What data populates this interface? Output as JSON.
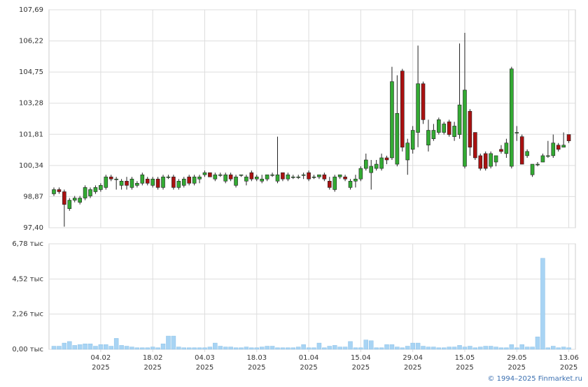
{
  "chart_data": [
    {
      "type": "candlestick",
      "categories": [
        null,
        null,
        null,
        null,
        null,
        null,
        null,
        null,
        null,
        "04.02",
        null,
        null,
        null,
        null,
        null,
        null,
        null,
        null,
        null,
        "18.02",
        null,
        null,
        null,
        null,
        null,
        null,
        null,
        null,
        null,
        "04.03",
        null,
        null,
        null,
        null,
        null,
        null,
        null,
        null,
        null,
        "18.03",
        null,
        null,
        null,
        null,
        null,
        null,
        null,
        null,
        null,
        "01.04",
        null,
        null,
        null,
        null,
        null,
        null,
        null,
        null,
        null,
        "15.04",
        null,
        null,
        null,
        null,
        null,
        null,
        null,
        null,
        null,
        "29.04",
        null,
        null,
        null,
        null,
        null,
        null,
        null,
        null,
        null,
        "15.05",
        null,
        null,
        null,
        null,
        null,
        null,
        null,
        null,
        null,
        "29.05",
        null,
        null,
        null,
        null,
        null,
        null,
        null,
        null,
        null,
        "13.06"
      ],
      "category_years": [
        null,
        null,
        null,
        null,
        null,
        null,
        null,
        null,
        null,
        "2025",
        null,
        null,
        null,
        null,
        null,
        null,
        null,
        null,
        null,
        "2025",
        null,
        null,
        null,
        null,
        null,
        null,
        null,
        null,
        null,
        "2025",
        null,
        null,
        null,
        null,
        null,
        null,
        null,
        null,
        null,
        "2025",
        null,
        null,
        null,
        null,
        null,
        null,
        null,
        null,
        null,
        "2025",
        null,
        null,
        null,
        null,
        null,
        null,
        null,
        null,
        null,
        "2025",
        null,
        null,
        null,
        null,
        null,
        null,
        null,
        null,
        null,
        "2025",
        null,
        null,
        null,
        null,
        null,
        null,
        null,
        null,
        null,
        "2025",
        null,
        null,
        null,
        null,
        null,
        null,
        null,
        null,
        null,
        "2025",
        null,
        null,
        null,
        null,
        null,
        null,
        null,
        null,
        null,
        "2025"
      ],
      "open": [
        99.0,
        99.2,
        99.1,
        98.3,
        98.7,
        98.6,
        98.8,
        98.9,
        99.1,
        99.2,
        99.3,
        99.8,
        99.7,
        99.4,
        99.6,
        99.3,
        99.4,
        99.5,
        99.7,
        99.4,
        99.7,
        99.3,
        99.8,
        99.8,
        99.3,
        99.4,
        99.8,
        99.5,
        99.7,
        99.9,
        100.0,
        99.7,
        99.9,
        99.6,
        99.9,
        99.4,
        99.9,
        99.6,
        100.0,
        99.7,
        99.6,
        99.7,
        99.9,
        99.6,
        100.0,
        99.7,
        99.8,
        99.8,
        99.9,
        100.0,
        99.8,
        99.8,
        99.9,
        99.6,
        99.2,
        99.8,
        99.8,
        99.3,
        99.6,
        99.7,
        100.2,
        100.0,
        100.2,
        100.2,
        100.7,
        100.7,
        100.4,
        104.8,
        100.6,
        101.1,
        101.9,
        104.2,
        101.3,
        101.6,
        101.9,
        101.9,
        102.4,
        101.7,
        101.8,
        100.3,
        102.9,
        101.9,
        100.8,
        100.9,
        100.3,
        100.5,
        101.1,
        100.9,
        100.3,
        101.9,
        101.7,
        100.8,
        99.9,
        100.4,
        100.5,
        100.8,
        100.8,
        101.3,
        101.2,
        101.8
      ],
      "high": [
        99.3,
        99.3,
        99.2,
        98.8,
        98.9,
        98.9,
        99.4,
        99.3,
        99.4,
        99.5,
        99.9,
        99.9,
        99.8,
        99.7,
        99.8,
        99.8,
        99.6,
        100.0,
        99.8,
        99.8,
        99.8,
        99.9,
        99.9,
        99.9,
        99.7,
        99.8,
        99.9,
        99.9,
        99.9,
        100.1,
        100.0,
        100.0,
        100.0,
        100.0,
        100.0,
        99.9,
        99.9,
        99.9,
        100.1,
        99.9,
        99.9,
        99.9,
        100.0,
        101.7,
        100.0,
        100.0,
        99.9,
        99.9,
        100.0,
        100.1,
        99.9,
        99.9,
        100.0,
        99.8,
        99.9,
        99.9,
        99.9,
        99.7,
        99.9,
        100.3,
        100.9,
        100.6,
        100.6,
        100.9,
        100.8,
        105.0,
        104.6,
        104.9,
        101.6,
        102.2,
        106.0,
        104.3,
        102.5,
        102.3,
        102.6,
        102.4,
        102.5,
        102.4,
        106.1,
        106.6,
        103.0,
        101.9,
        100.9,
        101.0,
        101.0,
        100.8,
        101.3,
        101.6,
        105.0,
        102.2,
        101.8,
        101.1,
        100.4,
        100.5,
        100.9,
        101.5,
        101.8,
        101.4,
        101.9,
        101.8
      ],
      "low": [
        98.9,
        99.0,
        97.45,
        98.2,
        98.6,
        98.5,
        98.7,
        98.8,
        99.0,
        99.1,
        99.2,
        99.6,
        99.2,
        99.2,
        99.2,
        99.2,
        99.3,
        99.4,
        99.4,
        99.3,
        99.2,
        99.2,
        99.7,
        99.2,
        99.2,
        99.3,
        99.4,
        99.4,
        99.5,
        99.8,
        99.8,
        99.6,
        99.8,
        99.5,
        99.6,
        99.3,
        99.8,
        99.4,
        99.6,
        99.6,
        99.5,
        99.6,
        99.8,
        99.5,
        99.6,
        99.6,
        99.7,
        99.7,
        99.7,
        99.6,
        99.7,
        99.7,
        99.6,
        99.2,
        99.1,
        99.7,
        99.6,
        99.2,
        99.3,
        99.6,
        100.1,
        99.2,
        100.1,
        100.1,
        100.4,
        100.6,
        100.3,
        101.0,
        99.9,
        100.9,
        101.2,
        102.3,
        101.0,
        101.5,
        101.8,
        101.8,
        101.7,
        101.5,
        101.6,
        100.2,
        100.8,
        100.6,
        100.1,
        100.1,
        100.2,
        100.3,
        100.9,
        100.7,
        100.2,
        101.5,
        100.4,
        100.7,
        99.8,
        100.3,
        100.5,
        100.7,
        100.7,
        101.0,
        101.2,
        101.4
      ],
      "close": [
        99.2,
        99.1,
        98.5,
        98.7,
        98.8,
        98.8,
        99.3,
        99.2,
        99.3,
        99.4,
        99.8,
        99.7,
        99.7,
        99.6,
        99.4,
        99.7,
        99.5,
        99.9,
        99.5,
        99.7,
        99.3,
        99.8,
        99.8,
        99.3,
        99.6,
        99.7,
        99.5,
        99.8,
        99.8,
        100.0,
        99.8,
        99.9,
        99.9,
        99.9,
        99.7,
        99.8,
        99.9,
        99.8,
        99.7,
        99.8,
        99.7,
        99.9,
        99.9,
        99.9,
        99.7,
        99.9,
        99.8,
        99.8,
        99.9,
        99.7,
        99.8,
        99.9,
        99.7,
        99.3,
        99.8,
        99.9,
        99.7,
        99.6,
        99.7,
        100.2,
        100.6,
        100.3,
        100.4,
        100.7,
        100.6,
        104.3,
        102.8,
        101.2,
        101.4,
        102.0,
        104.2,
        102.5,
        102.0,
        102.0,
        102.5,
        102.3,
        101.8,
        102.2,
        103.2,
        103.9,
        101.2,
        100.7,
        100.2,
        100.2,
        100.9,
        100.8,
        101.0,
        101.4,
        104.9,
        101.9,
        100.4,
        101.0,
        100.4,
        100.4,
        100.8,
        100.8,
        101.4,
        101.1,
        101.3,
        101.5
      ],
      "up_color": "#33aa33",
      "down_color": "#aa1111",
      "ylim": [
        97.4,
        107.69
      ],
      "yticks": [
        {
          "value": 97.4,
          "label": "97,40"
        },
        {
          "value": 98.87,
          "label": "98,87"
        },
        {
          "value": 100.34,
          "label": "100,34"
        },
        {
          "value": 101.81,
          "label": "101,81"
        },
        {
          "value": 103.28,
          "label": "103,28"
        },
        {
          "value": 104.75,
          "label": "104,75"
        },
        {
          "value": 106.22,
          "label": "106,22"
        },
        {
          "value": 107.69,
          "label": "107,69"
        }
      ],
      "grid": true
    },
    {
      "type": "bar",
      "values": [
        0.2,
        0.2,
        0.4,
        0.5,
        0.25,
        0.3,
        0.35,
        0.35,
        0.2,
        0.3,
        0.3,
        0.2,
        0.7,
        0.25,
        0.2,
        0.15,
        0.1,
        0.1,
        0.1,
        0.15,
        0.1,
        0.35,
        0.85,
        0.85,
        0.15,
        0.1,
        0.1,
        0.1,
        0.1,
        0.1,
        0.15,
        0.4,
        0.2,
        0.15,
        0.15,
        0.1,
        0.1,
        0.15,
        0.1,
        0.1,
        0.15,
        0.2,
        0.2,
        0.1,
        0.1,
        0.1,
        0.1,
        0.15,
        0.3,
        0.1,
        0.1,
        0.4,
        0.1,
        0.2,
        0.25,
        0.15,
        0.15,
        0.5,
        0.1,
        0.1,
        0.6,
        0.55,
        0.1,
        0.1,
        0.3,
        0.3,
        0.15,
        0.1,
        0.2,
        0.4,
        0.4,
        0.2,
        0.15,
        0.15,
        0.1,
        0.1,
        0.15,
        0.15,
        0.25,
        0.15,
        0.2,
        0.1,
        0.15,
        0.2,
        0.2,
        0.15,
        0.1,
        0.1,
        0.3,
        0.1,
        0.3,
        0.15,
        0.15,
        0.8,
        5.85,
        0.1,
        0.2,
        0.1,
        0.15,
        0.1
      ],
      "color": "#a8d4f4",
      "ylim": [
        0,
        6.78
      ],
      "yticks": [
        {
          "value": 0,
          "label": "0,00 тыс"
        },
        {
          "value": 2.26,
          "label": "2,26 тыс"
        },
        {
          "value": 4.52,
          "label": "4,52 тыс"
        },
        {
          "value": 6.78,
          "label": "6,78 тыс"
        }
      ],
      "grid": true
    }
  ],
  "footer": "© 1994–2025 Finmarket.ru"
}
